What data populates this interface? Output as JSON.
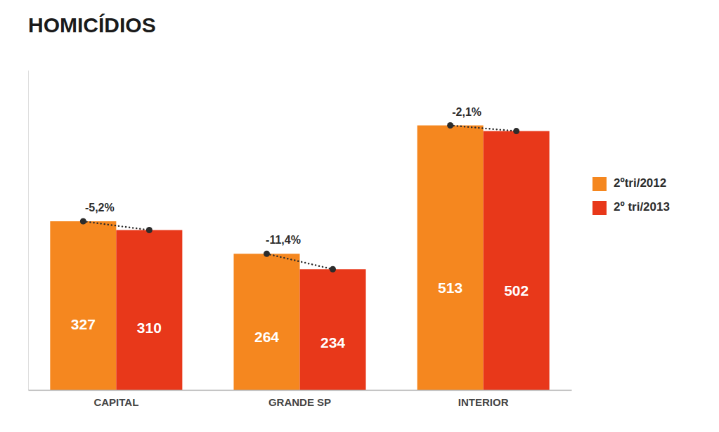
{
  "chart_data": {
    "type": "bar",
    "title": "HOMICÍDIOS",
    "categories": [
      "CAPITAL",
      "GRANDE SP",
      "INTERIOR"
    ],
    "series": [
      {
        "name": "2ºtri/2012",
        "color": "#F5871F",
        "values": [
          327,
          264,
          513
        ]
      },
      {
        "name": "2º tri/2013",
        "color": "#E8381A",
        "values": [
          310,
          234,
          502
        ]
      }
    ],
    "annotations": [
      "-5,2%",
      "-11,4%",
      "-2,1%"
    ],
    "ylim": [
      0,
      620
    ],
    "data_labels": true,
    "tick_labels": "x",
    "grid": false,
    "legend": "right"
  }
}
